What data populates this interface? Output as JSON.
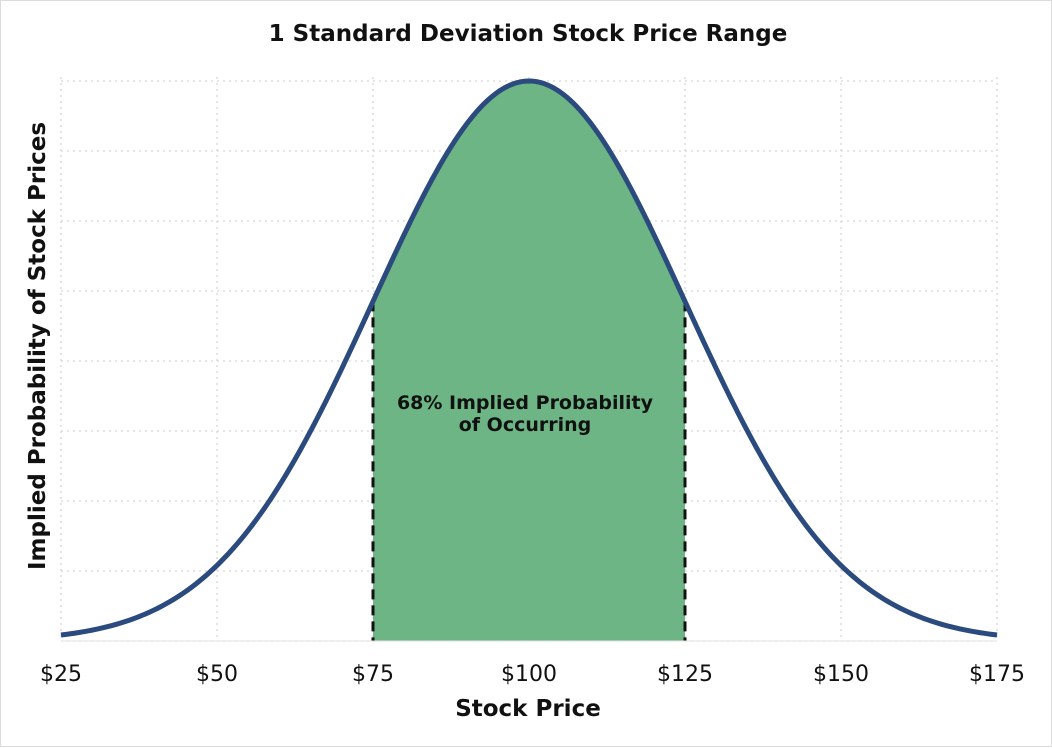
{
  "chart_data": {
    "type": "area",
    "title": "1 Standard Deviation Stock Price Range",
    "xlabel": "Stock Price",
    "ylabel": "Implied Probability of Stock Prices",
    "xlim": [
      25,
      175
    ],
    "x_ticks": [
      25,
      50,
      75,
      100,
      125,
      150,
      175
    ],
    "x_tick_labels": [
      "$25",
      "$50",
      "$75",
      "$100",
      "$125",
      "$150",
      "$175"
    ],
    "distribution": {
      "kind": "normal",
      "mean": 100,
      "std_dev": 25
    },
    "shaded_range": [
      75,
      125
    ],
    "annotation": [
      "68% Implied Probability",
      "of Occurring"
    ],
    "grid": true,
    "colors": {
      "curve": "#2b4a7e",
      "fill": "#6db585",
      "grid": "#d6d6d6",
      "boundary": "#111111"
    }
  }
}
